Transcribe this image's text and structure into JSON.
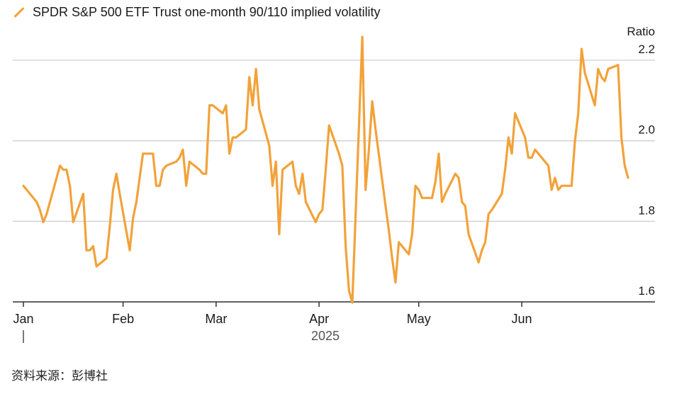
{
  "colors": {
    "series": "#f2a23a",
    "grid": "#cfcfcf",
    "axis": "#333333",
    "text": "#1a1a1a"
  },
  "legend": {
    "icon": "line-swatch",
    "label": "SPDR S&P 500 ETF Trust one-month 90/110 implied volatility"
  },
  "source": "资料来源：彭博社",
  "chart_data": {
    "type": "line",
    "title": "",
    "xlabel": "2025",
    "ylabel": "Ratio",
    "ylim": [
      1.56,
      2.22
    ],
    "yticks": [
      1.6,
      1.8,
      2.0,
      2.2
    ],
    "ytick_labels": [
      "1.6",
      "1.8",
      "2.0",
      "2.2"
    ],
    "y_axis_position": "right",
    "grid": true,
    "legend_position": "top-left",
    "xticks": [
      {
        "label": "Jan",
        "date": "2025-01-01"
      },
      {
        "label": "Feb",
        "date": "2025-02-01"
      },
      {
        "label": "Mar",
        "date": "2025-03-01"
      },
      {
        "label": "Apr",
        "date": "2025-04-01"
      },
      {
        "label": "May",
        "date": "2025-05-01"
      },
      {
        "label": "Jun",
        "date": "2025-06-01"
      }
    ],
    "series": [
      {
        "name": "SPDR S&P 500 ETF Trust one-month 90/110 implied volatility",
        "points": [
          [
            "2025-01-02",
            1.86
          ],
          [
            "2025-01-03",
            1.85
          ],
          [
            "2025-01-06",
            1.82
          ],
          [
            "2025-01-07",
            1.8
          ],
          [
            "2025-01-08",
            1.77
          ],
          [
            "2025-01-09",
            1.79
          ],
          [
            "2025-01-10",
            1.82
          ],
          [
            "2025-01-13",
            1.91
          ],
          [
            "2025-01-14",
            1.9
          ],
          [
            "2025-01-15",
            1.9
          ],
          [
            "2025-01-16",
            1.86
          ],
          [
            "2025-01-17",
            1.77
          ],
          [
            "2025-01-20",
            1.84
          ],
          [
            "2025-01-21",
            1.7
          ],
          [
            "2025-01-22",
            1.7
          ],
          [
            "2025-01-23",
            1.71
          ],
          [
            "2025-01-24",
            1.66
          ],
          [
            "2025-01-27",
            1.68
          ],
          [
            "2025-01-28",
            1.76
          ],
          [
            "2025-01-29",
            1.85
          ],
          [
            "2025-01-30",
            1.89
          ],
          [
            "2025-01-31",
            1.84
          ],
          [
            "2025-02-03",
            1.7
          ],
          [
            "2025-02-04",
            1.78
          ],
          [
            "2025-02-05",
            1.82
          ],
          [
            "2025-02-06",
            1.88
          ],
          [
            "2025-02-07",
            1.94
          ],
          [
            "2025-02-10",
            1.94
          ],
          [
            "2025-02-11",
            1.86
          ],
          [
            "2025-02-12",
            1.86
          ],
          [
            "2025-02-13",
            1.9
          ],
          [
            "2025-02-14",
            1.91
          ],
          [
            "2025-02-17",
            1.92
          ],
          [
            "2025-02-18",
            1.93
          ],
          [
            "2025-02-19",
            1.95
          ],
          [
            "2025-02-20",
            1.86
          ],
          [
            "2025-02-21",
            1.92
          ],
          [
            "2025-02-24",
            1.9
          ],
          [
            "2025-02-25",
            1.89
          ],
          [
            "2025-02-26",
            1.89
          ],
          [
            "2025-02-27",
            2.06
          ],
          [
            "2025-02-28",
            2.06
          ],
          [
            "2025-03-03",
            2.04
          ],
          [
            "2025-03-04",
            2.06
          ],
          [
            "2025-03-05",
            1.94
          ],
          [
            "2025-03-06",
            1.98
          ],
          [
            "2025-03-07",
            1.98
          ],
          [
            "2025-03-10",
            2.0
          ],
          [
            "2025-03-11",
            2.13
          ],
          [
            "2025-03-12",
            2.06
          ],
          [
            "2025-03-13",
            2.15
          ],
          [
            "2025-03-14",
            2.05
          ],
          [
            "2025-03-17",
            1.96
          ],
          [
            "2025-03-18",
            1.86
          ],
          [
            "2025-03-19",
            1.92
          ],
          [
            "2025-03-20",
            1.74
          ],
          [
            "2025-03-21",
            1.9
          ],
          [
            "2025-03-24",
            1.92
          ],
          [
            "2025-03-25",
            1.86
          ],
          [
            "2025-03-26",
            1.84
          ],
          [
            "2025-03-27",
            1.89
          ],
          [
            "2025-03-28",
            1.82
          ],
          [
            "2025-03-31",
            1.77
          ],
          [
            "2025-04-01",
            1.79
          ],
          [
            "2025-04-02",
            1.8
          ],
          [
            "2025-04-03",
            1.9
          ],
          [
            "2025-04-04",
            2.01
          ],
          [
            "2025-04-07",
            1.94
          ],
          [
            "2025-04-08",
            1.91
          ],
          [
            "2025-04-09",
            1.71
          ],
          [
            "2025-04-10",
            1.6
          ],
          [
            "2025-04-11",
            1.57
          ],
          [
            "2025-04-14",
            2.23
          ],
          [
            "2025-04-15",
            1.85
          ],
          [
            "2025-04-16",
            1.95
          ],
          [
            "2025-04-17",
            2.07
          ],
          [
            "2025-04-18",
            2.0
          ],
          [
            "2025-04-21",
            1.81
          ],
          [
            "2025-04-22",
            1.75
          ],
          [
            "2025-04-23",
            1.68
          ],
          [
            "2025-04-24",
            1.62
          ],
          [
            "2025-04-25",
            1.72
          ],
          [
            "2025-04-28",
            1.69
          ],
          [
            "2025-04-29",
            1.74
          ],
          [
            "2025-04-30",
            1.86
          ],
          [
            "2025-05-01",
            1.85
          ],
          [
            "2025-05-02",
            1.83
          ],
          [
            "2025-05-05",
            1.83
          ],
          [
            "2025-05-06",
            1.87
          ],
          [
            "2025-05-07",
            1.94
          ],
          [
            "2025-05-08",
            1.82
          ],
          [
            "2025-05-09",
            1.84
          ],
          [
            "2025-05-12",
            1.89
          ],
          [
            "2025-05-13",
            1.88
          ],
          [
            "2025-05-14",
            1.82
          ],
          [
            "2025-05-15",
            1.81
          ],
          [
            "2025-05-16",
            1.74
          ],
          [
            "2025-05-19",
            1.67
          ],
          [
            "2025-05-20",
            1.7
          ],
          [
            "2025-05-21",
            1.72
          ],
          [
            "2025-05-22",
            1.79
          ],
          [
            "2025-05-23",
            1.8
          ],
          [
            "2025-05-26",
            1.84
          ],
          [
            "2025-05-27",
            1.9
          ],
          [
            "2025-05-28",
            1.98
          ],
          [
            "2025-05-29",
            1.94
          ],
          [
            "2025-05-30",
            2.04
          ],
          [
            "2025-06-02",
            1.98
          ],
          [
            "2025-06-03",
            1.93
          ],
          [
            "2025-06-04",
            1.93
          ],
          [
            "2025-06-05",
            1.95
          ],
          [
            "2025-06-06",
            1.94
          ],
          [
            "2025-06-09",
            1.91
          ],
          [
            "2025-06-10",
            1.85
          ],
          [
            "2025-06-11",
            1.88
          ],
          [
            "2025-06-12",
            1.85
          ],
          [
            "2025-06-13",
            1.86
          ],
          [
            "2025-06-16",
            1.86
          ],
          [
            "2025-06-17",
            1.97
          ],
          [
            "2025-06-18",
            2.04
          ],
          [
            "2025-06-19",
            2.2
          ],
          [
            "2025-06-20",
            2.14
          ],
          [
            "2025-06-23",
            2.06
          ],
          [
            "2025-06-24",
            2.15
          ],
          [
            "2025-06-25",
            2.13
          ],
          [
            "2025-06-26",
            2.12
          ],
          [
            "2025-06-27",
            2.15
          ],
          [
            "2025-06-30",
            2.16
          ],
          [
            "2025-07-01",
            1.98
          ],
          [
            "2025-07-02",
            1.91
          ],
          [
            "2025-07-03",
            1.88
          ]
        ]
      }
    ]
  }
}
